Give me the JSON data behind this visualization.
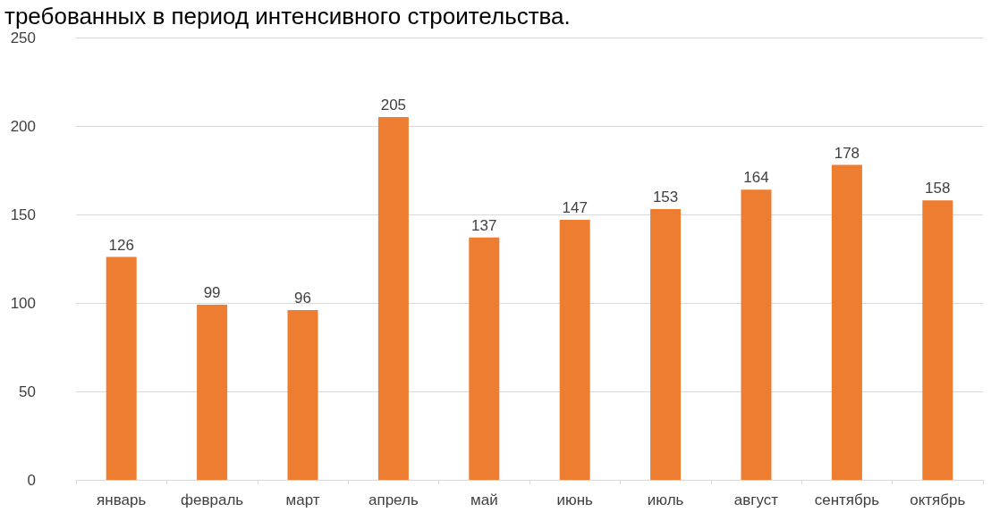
{
  "chart_data": {
    "type": "bar",
    "title": "требованных в период интенсивного строительства.",
    "categories": [
      "январь",
      "февраль",
      "март",
      "апрель",
      "май",
      "июнь",
      "июль",
      "август",
      "сентябрь",
      "октябрь"
    ],
    "values": [
      126,
      99,
      96,
      205,
      137,
      147,
      153,
      164,
      178,
      158
    ],
    "color": "#ed7d31",
    "ylim": [
      0,
      250
    ],
    "yticks": [
      0,
      50,
      100,
      150,
      200,
      250
    ],
    "grid": "y",
    "data_labels": true
  }
}
